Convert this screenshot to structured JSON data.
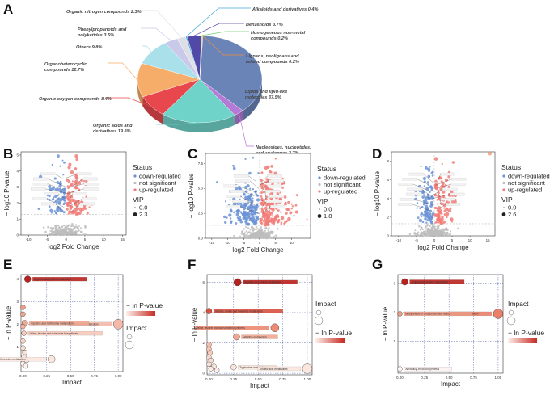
{
  "panels": {
    "A": "A",
    "B": "B",
    "C": "C",
    "D": "D",
    "E": "E",
    "F": "F",
    "G": "G"
  },
  "chart_data": [
    {
      "panel": "A",
      "type": "pie",
      "categories": [
        "Lipids and lipid-like molecules",
        "Nucleosides, nucleotides, and analogues",
        "Organic acids and derivatives",
        "Organic oxygen compounds",
        "Organoheterocyclic compounds",
        "Others",
        "Phenylpropanoids and polyketides",
        "Organic nitrogen compounds",
        "Alkaloids and derivatives",
        "Benzenoids",
        "Homogeneous non-metal compounds",
        "Lignans, neolignans and related compounds"
      ],
      "values": [
        37.5,
        2.7,
        19.8,
        8.4,
        12.7,
        9.8,
        3.5,
        2.3,
        0.4,
        3.7,
        0.2,
        0.2
      ],
      "colors": [
        "#6b84b8",
        "#b57ad6",
        "#6fd3c9",
        "#e8484d",
        "#f7ad6a",
        "#a9e0ea",
        "#c9c9ea",
        "#dedee6",
        "#44a7d9",
        "#5149a8",
        "#6fcf6f",
        "#f09040"
      ],
      "label_texts": [
        "Lipids and lipid-like molecules 37.5%",
        "Nucleosides, nucleotides, and analogues 2.7%",
        "Organic acids and derivatives 19.8%",
        "Organic oxygen compounds 8.4%",
        "Organoheterocyclic compounds 12.7%",
        "Others 9.8%",
        "Phenylpropanoids and polyketides 3.5%",
        "Organic nitrogen compounds 2.3%",
        "Alkaloids and derivatives 0.4%",
        "Benzenoids 3.7%",
        "Homogeneous non-metal compounds 0.2%",
        "Lignans, neolignans and related compounds 0.2%"
      ]
    },
    {
      "panel": "B",
      "type": "scatter",
      "title": "",
      "xlabel": "log2 Fold Change",
      "ylabel": "− log10 P-value",
      "xlim": [
        -12,
        16
      ],
      "ylim": [
        0,
        5.2
      ],
      "xticks": [
        -10,
        -5,
        0,
        5,
        10,
        15
      ],
      "yticks": [
        0,
        1,
        2,
        3,
        4,
        5
      ],
      "threshold_y": 1.3,
      "legend": {
        "status_title": "Status",
        "status": [
          "down-regulated",
          "not significant",
          "up-regulated"
        ],
        "vip_title": "VIP",
        "vip_values": [
          "0.0",
          "2.3"
        ]
      },
      "seed": 11,
      "n_down": 70,
      "n_up": 90,
      "n_ns": 220,
      "spread_down": 6,
      "spread_up": 7
    },
    {
      "panel": "C",
      "type": "scatter",
      "title": "",
      "xlabel": "log2 Fold Change",
      "ylabel": "− log10 P-value",
      "xlim": [
        -17,
        16
      ],
      "ylim": [
        0,
        8.5
      ],
      "xticks": [
        -15,
        -10,
        -5,
        0,
        5,
        10
      ],
      "yticks": [
        0.0,
        2.5,
        5.0,
        7.5
      ],
      "threshold_y": 1.3,
      "legend": {
        "status_title": "Status",
        "status": [
          "down-regulated",
          "not significant",
          "up-regulated"
        ],
        "vip_title": "VIP",
        "vip_values": [
          "0.0",
          "1.8"
        ]
      },
      "seed": 23,
      "n_down": 160,
      "n_up": 200,
      "n_ns": 260,
      "spread_down": 10,
      "spread_up": 10
    },
    {
      "panel": "D",
      "type": "scatter",
      "title": "",
      "xlabel": "log2 Fold Change",
      "ylabel": "− log10 P-value",
      "xlim": [
        -12,
        17
      ],
      "ylim": [
        0,
        9
      ],
      "xticks": [
        -10,
        -5,
        0,
        5,
        10,
        15
      ],
      "yticks": [
        0,
        2,
        4,
        6,
        8
      ],
      "threshold_y": 1.3,
      "legend": {
        "status_title": "Status",
        "status": [
          "down-regulated",
          "not significant",
          "up-regulated"
        ],
        "vip_title": "VIP",
        "vip_values": [
          "0.0",
          "2.6"
        ]
      },
      "seed": 37,
      "n_down": 90,
      "n_up": 110,
      "n_ns": 260,
      "spread_down": 5,
      "spread_up": 6,
      "outlier": {
        "x": 15.6,
        "y": 8.8
      }
    },
    {
      "panel": "E",
      "type": "scatter",
      "xlabel": "Impact",
      "ylabel": "− ln P-value",
      "xlim": [
        -0.02,
        1.05
      ],
      "ylim": [
        -0.1,
        4.2
      ],
      "xticks": [
        0.0,
        0.25,
        0.5,
        0.75,
        1.0
      ],
      "xtick_labels": [
        "0.00",
        "0.25",
        "0.50",
        "0.75",
        "1.00"
      ],
      "yticks": [
        1,
        2,
        3,
        4
      ],
      "legend": {
        "color_title": "− ln P-value",
        "size_title": "Impact"
      },
      "points": [
        {
          "x": 0.05,
          "y": 4.0,
          "r": 4,
          "c": "#b8221e",
          "label": "Arginine and proline metabolism"
        },
        {
          "x": 1.0,
          "y": 2.0,
          "r": 6,
          "c": "#f4b9a8",
          "label": "Linoleic acid metabolism"
        },
        {
          "x": 0.02,
          "y": 2.05,
          "r": 3.5,
          "c": "#f0a892",
          "label": "Cysteine and methionine metabolism"
        },
        {
          "x": 0.0,
          "y": 1.9,
          "r": 3,
          "c": "#f3b09c",
          "label": ""
        },
        {
          "x": 0.01,
          "y": 1.6,
          "r": 3,
          "c": "#f6c8b9",
          "label": "Valine, leucine and isoleucine biosynthesis"
        },
        {
          "x": 0.0,
          "y": 1.25,
          "r": 3,
          "c": "#f7d3c6",
          "label": ""
        },
        {
          "x": 0.0,
          "y": 0.95,
          "r": 3,
          "c": "#f9dcd1",
          "label": ""
        },
        {
          "x": 0.02,
          "y": 0.75,
          "r": 3,
          "c": "#fae3da",
          "label": ""
        },
        {
          "x": 0.01,
          "y": 0.55,
          "r": 3,
          "c": "#fbe7df",
          "label": ""
        },
        {
          "x": 0.04,
          "y": 0.4,
          "r": 3,
          "c": "#fcebe4",
          "label": ""
        },
        {
          "x": 0.0,
          "y": 0.25,
          "r": 3,
          "c": "#fdf0ea",
          "label": ""
        },
        {
          "x": 0.03,
          "y": 0.15,
          "r": 3,
          "c": "#fdf2ee",
          "label": ""
        },
        {
          "x": 0.3,
          "y": 0.45,
          "r": 4.5,
          "c": "#fbe6dd",
          "label": "Glycine, serine and threonine metabolism"
        },
        {
          "x": 0.0,
          "y": 2.75,
          "r": 3,
          "c": "#ef9c84",
          "label": ""
        },
        {
          "x": 0.0,
          "y": 2.45,
          "r": 3,
          "c": "#f1a48f",
          "label": ""
        }
      ]
    },
    {
      "panel": "F",
      "type": "scatter",
      "xlabel": "Impact",
      "ylabel": "− ln P-value",
      "xlim": [
        -0.02,
        1.05
      ],
      "ylim": [
        -0.1,
        6.5
      ],
      "xticks": [
        0.0,
        0.25,
        0.5,
        0.75,
        1.0
      ],
      "xtick_labels": [
        "0.00",
        "0.25",
        "0.50",
        "0.75",
        "1.00"
      ],
      "yticks": [
        0,
        2,
        4,
        6
      ],
      "legend": {
        "color_title": "− ln P-value",
        "size_title": "Impact"
      },
      "points": [
        {
          "x": 0.29,
          "y": 6.0,
          "r": 4.5,
          "c": "#b8221e",
          "label": "Arginine and proline metabolism"
        },
        {
          "x": 0.0,
          "y": 4.1,
          "r": 3.5,
          "c": "#d8503f",
          "label": "Glycine, serine and threonine metabolism"
        },
        {
          "x": 0.67,
          "y": 3.0,
          "r": 5,
          "c": "#ec8a72",
          "label": "Valine, leucine and isoleucine biosynthesis"
        },
        {
          "x": 0.28,
          "y": 2.4,
          "r": 4,
          "c": "#f2a68f",
          "label": "Histidine metabolism"
        },
        {
          "x": 0.0,
          "y": 1.9,
          "r": 3,
          "c": "#f5bca8",
          "label": ""
        },
        {
          "x": 0.0,
          "y": 1.6,
          "r": 3,
          "c": "#f6c4b2",
          "label": ""
        },
        {
          "x": 0.01,
          "y": 1.35,
          "r": 3,
          "c": "#f7ccbc",
          "label": ""
        },
        {
          "x": 0.0,
          "y": 1.05,
          "r": 3,
          "c": "#f9d6c9",
          "label": ""
        },
        {
          "x": 0.02,
          "y": 0.85,
          "r": 3,
          "c": "#fadcd0",
          "label": ""
        },
        {
          "x": 0.0,
          "y": 0.6,
          "r": 3,
          "c": "#fbe2d9",
          "label": ""
        },
        {
          "x": 0.05,
          "y": 0.45,
          "r": 3,
          "c": "#fbe6de",
          "label": ""
        },
        {
          "x": 0.02,
          "y": 0.3,
          "r": 3,
          "c": "#fceae3",
          "label": ""
        },
        {
          "x": 0.08,
          "y": 0.2,
          "r": 3,
          "c": "#fdeee8",
          "label": ""
        },
        {
          "x": 0.25,
          "y": 0.4,
          "r": 3.5,
          "c": "#fbe5dc",
          "label": "Tryptophan metabolism"
        },
        {
          "x": 1.0,
          "y": 0.3,
          "r": 6,
          "c": "#fce6dd",
          "label": "Linoleic acid metabolism"
        }
      ]
    },
    {
      "panel": "G",
      "type": "scatter",
      "xlabel": "Impact",
      "ylabel": "− ln P-value",
      "xlim": [
        -0.02,
        1.05
      ],
      "ylim": [
        -0.1,
        3.3
      ],
      "xticks": [
        0.0,
        0.25,
        0.5,
        0.75,
        1.0
      ],
      "xtick_labels": [
        "0.00",
        "0.25",
        "0.50",
        "0.75",
        "1.00"
      ],
      "yticks": [
        1,
        2,
        3
      ],
      "legend": {
        "color_title": "− ln P-value",
        "size_title": "Impact"
      },
      "points": [
        {
          "x": 0.05,
          "y": 3.05,
          "r": 4,
          "c": "#b8221e",
          "label": "Arginine and proline metabolism"
        },
        {
          "x": 1.0,
          "y": 1.95,
          "r": 6,
          "c": "#ea8068",
          "label": "Linoleic acid metabolism"
        },
        {
          "x": 0.0,
          "y": 1.95,
          "r": 3,
          "c": "#ef9a83",
          "label": "Biosynthesis of unsaturated fatty acids"
        },
        {
          "x": 0.0,
          "y": 0.05,
          "r": 3,
          "c": "#fdf3ef",
          "label": "Aminoacyl-tRNA biosynthesis"
        }
      ]
    }
  ]
}
